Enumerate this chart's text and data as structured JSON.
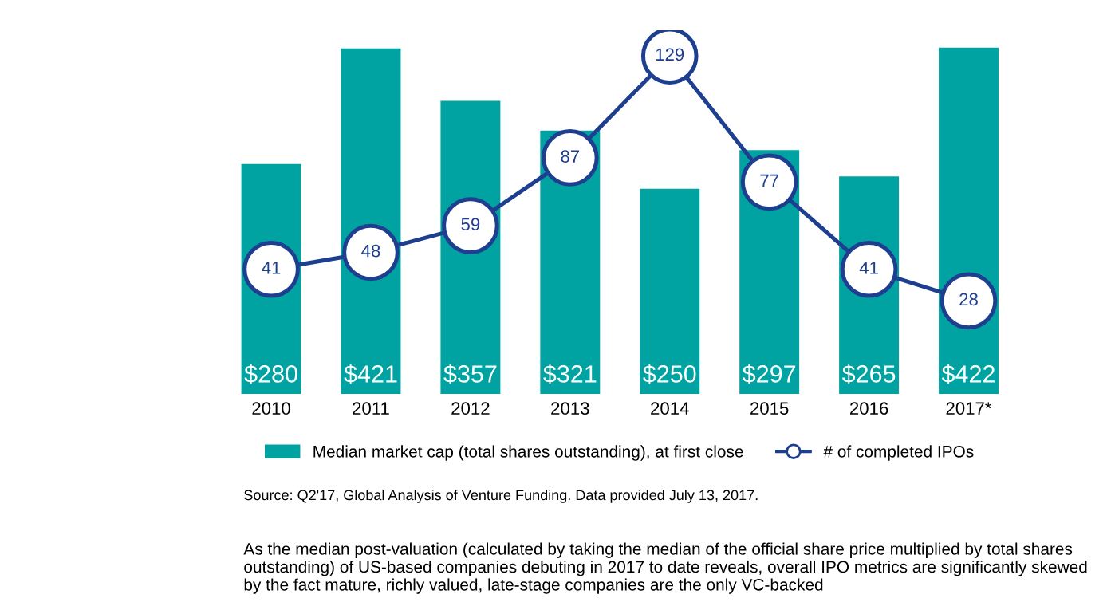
{
  "chart_data": {
    "type": "bar",
    "categories": [
      "2010",
      "2011",
      "2012",
      "2013",
      "2014",
      "2015",
      "2016",
      "2017*"
    ],
    "series": [
      {
        "name": "Median market cap (total shares outstanding), at first close",
        "color": "#00a3a1",
        "values": [
          280,
          421,
          357,
          321,
          250,
          297,
          265,
          422
        ],
        "value_labels": [
          "$280",
          "$421",
          "$357",
          "$321",
          "$250",
          "$297",
          "$265",
          "$422"
        ]
      },
      {
        "name": "# of completed IPOs",
        "type": "line",
        "axis": "y2",
        "color": "#1e3f8f",
        "marker": "circle",
        "values": [
          41,
          48,
          59,
          87,
          129,
          77,
          41,
          28
        ],
        "value_labels": [
          "41",
          "48",
          "59",
          "87",
          "129",
          "77",
          "41",
          "28"
        ]
      }
    ],
    "legend": "bottom",
    "grid": false,
    "annotations": [
      "Source: Q2'17, Global Analysis of Venture Funding. Data provided July 13, 2017.",
      "As the median post-valuation (calculated by taking the median of the official share price multiplied by total shares outstanding) of US-based companies debuting in 2017 to date reveals, overall IPO metrics are significantly skewed by the fact mature, richly valued, late-stage companies are the only VC-backed"
    ]
  }
}
